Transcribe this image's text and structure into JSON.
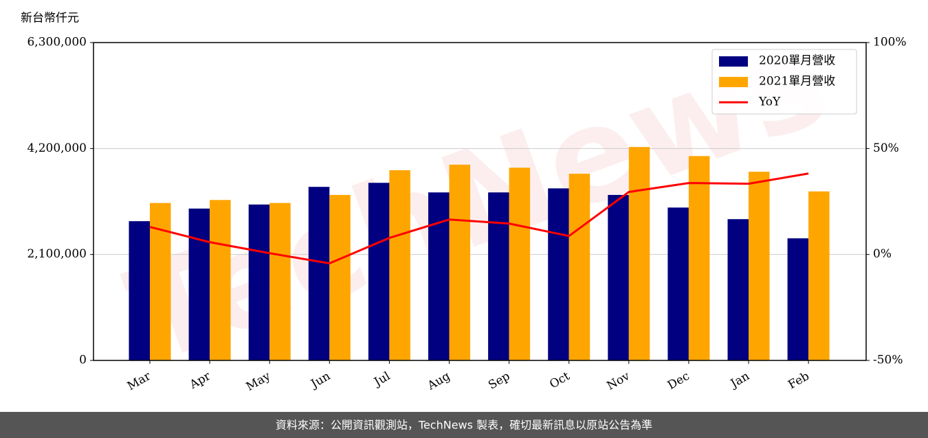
{
  "chart_data": {
    "type": "bar",
    "ylabel": "新台幣仟元",
    "watermark": "TechNews",
    "source": "資料來源：公開資訊觀測站，TechNews 製表，確切最新訊息以原站公告為準",
    "categories": [
      "Mar",
      "Apr",
      "May",
      "Jun",
      "Jul",
      "Aug",
      "Sep",
      "Oct",
      "Nov",
      "Dec",
      "Jan",
      "Feb"
    ],
    "series": [
      {
        "name": "2020單月營收",
        "color": "#000080",
        "values": [
          2760000,
          3010000,
          3090000,
          3440000,
          3520000,
          3330000,
          3330000,
          3410000,
          3280000,
          3030000,
          2800000,
          2420000
        ]
      },
      {
        "name": "2021單月營收",
        "color": "#ffa500",
        "values": [
          3120000,
          3180000,
          3120000,
          3280000,
          3770000,
          3880000,
          3820000,
          3700000,
          4230000,
          4050000,
          3740000,
          3350000
        ]
      },
      {
        "name": "YoY",
        "color": "#ff0000",
        "axis": "y2",
        "values": [
          13,
          5.8,
          0.6,
          -4.2,
          7.8,
          16.5,
          14.6,
          8.7,
          29.5,
          33.7,
          33.4,
          38.2
        ]
      }
    ],
    "ylim": [
      0,
      6300000
    ],
    "yticks": [
      0,
      {
        "value": 2100000,
        "label": "2,100,000"
      },
      {
        "value": 4200000,
        "label": "4,200,000"
      },
      {
        "value": 6300000,
        "label": "6,300,000"
      }
    ],
    "y2lim": [
      -50,
      100
    ],
    "y2ticks": [
      {
        "value": -50,
        "label": "-50%"
      },
      {
        "value": 0,
        "label": "0%"
      },
      {
        "value": 50,
        "label": "50%"
      },
      {
        "value": 100,
        "label": "100%"
      }
    ],
    "grid": true,
    "legend": "upper right"
  }
}
